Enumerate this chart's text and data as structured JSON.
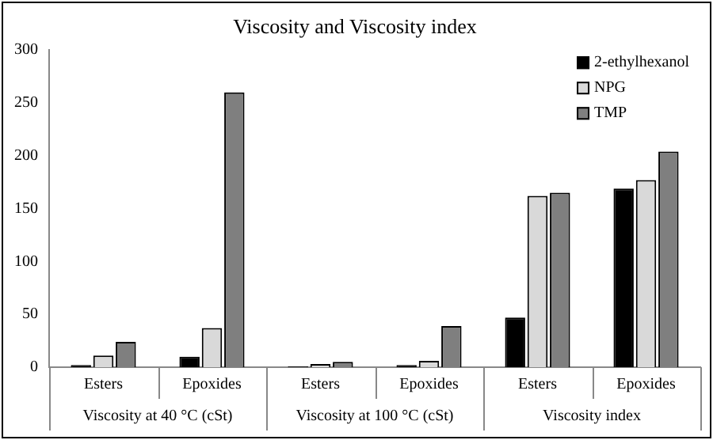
{
  "chart_data": {
    "type": "bar",
    "title": "Viscosity and Viscosity index",
    "categories": [
      "Esters",
      "Epoxides",
      "Esters",
      "Epoxides",
      "Esters",
      "Epoxides"
    ],
    "annotations": [
      "Viscosity at 40 °C (cSt)",
      "Viscosity at 100 °C (cSt)",
      "Viscosity index"
    ],
    "series": [
      {
        "name": "2-ethylhexanol",
        "color": "#000000",
        "values": [
          2,
          10,
          1,
          2,
          47,
          169
        ]
      },
      {
        "name": "NPG",
        "color": "#d9d9d9",
        "values": [
          11,
          37,
          3,
          6,
          162,
          177
        ]
      },
      {
        "name": "TMP",
        "color": "#7f7f7f",
        "values": [
          24,
          260,
          5,
          39,
          165,
          204
        ]
      }
    ],
    "ylim": [
      0,
      300
    ],
    "yticks": [
      0,
      50,
      100,
      150,
      200,
      250,
      300
    ],
    "grid": false,
    "legend": "top right"
  }
}
